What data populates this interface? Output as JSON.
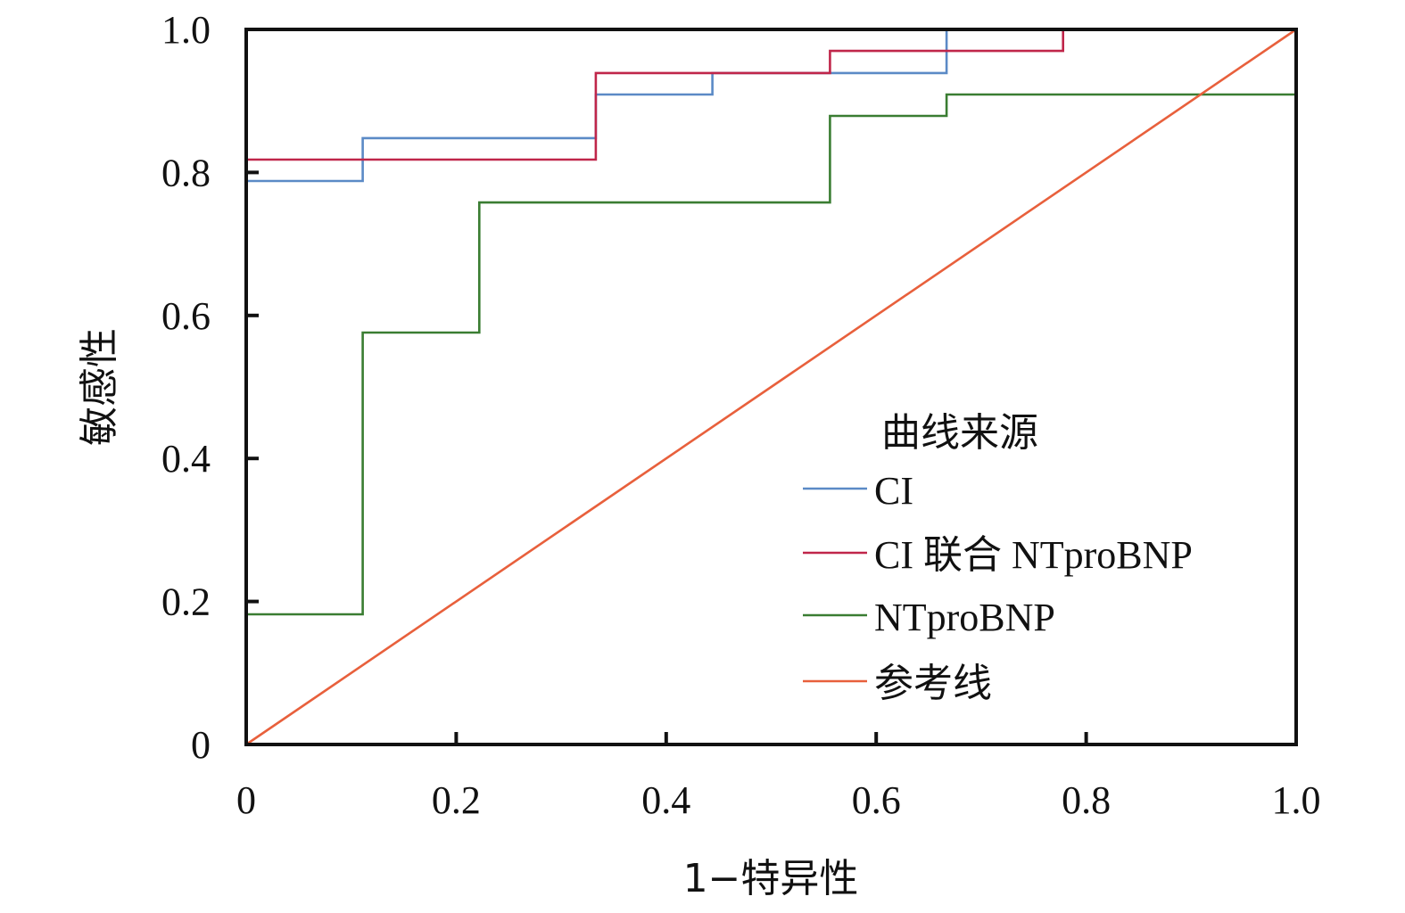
{
  "chart_data": {
    "type": "line",
    "xlabel": "1−特异性",
    "ylabel": "敏感性",
    "xlim": [
      0,
      1
    ],
    "ylim": [
      0,
      1
    ],
    "x_ticks": [
      0,
      0.2,
      0.4,
      0.6,
      0.8,
      1.0
    ],
    "x_tick_labels": [
      "0",
      "0.2",
      "0.4",
      "0.6",
      "0.8",
      "1.0"
    ],
    "y_ticks": [
      0,
      0.2,
      0.4,
      0.6,
      0.8,
      1.0
    ],
    "y_tick_labels": [
      "0",
      "0.2",
      "0.4",
      "0.6",
      "0.8",
      "1.0"
    ],
    "grid": false,
    "legend": {
      "title": "曲线来源",
      "position": "right"
    },
    "series": [
      {
        "name": "CI",
        "color": "#5b8ac6",
        "x": [
          0,
          0,
          0.111,
          0.111,
          0.333,
          0.333,
          0.444,
          0.444,
          0.667,
          0.667,
          1.0
        ],
        "y": [
          0,
          0.788,
          0.788,
          0.848,
          0.848,
          0.909,
          0.909,
          0.939,
          0.939,
          1.0,
          1.0
        ]
      },
      {
        "name": "CI 联合 NTproBNP",
        "color": "#c0264a",
        "x": [
          0,
          0,
          0.333,
          0.333,
          0.556,
          0.556,
          0.778,
          0.778,
          1.0
        ],
        "y": [
          0,
          0.818,
          0.818,
          0.939,
          0.939,
          0.97,
          0.97,
          1.0,
          1.0
        ]
      },
      {
        "name": "NTproBNP",
        "color": "#3a7d32",
        "x": [
          0,
          0,
          0.111,
          0.111,
          0.222,
          0.222,
          0.556,
          0.556,
          0.667,
          0.667,
          1.0,
          1.0
        ],
        "y": [
          0,
          0.182,
          0.182,
          0.576,
          0.576,
          0.758,
          0.758,
          0.879,
          0.879,
          0.909,
          0.909,
          1.0
        ]
      },
      {
        "name": "参考线",
        "color": "#e8603c",
        "x": [
          0,
          1
        ],
        "y": [
          0,
          1
        ]
      }
    ]
  }
}
